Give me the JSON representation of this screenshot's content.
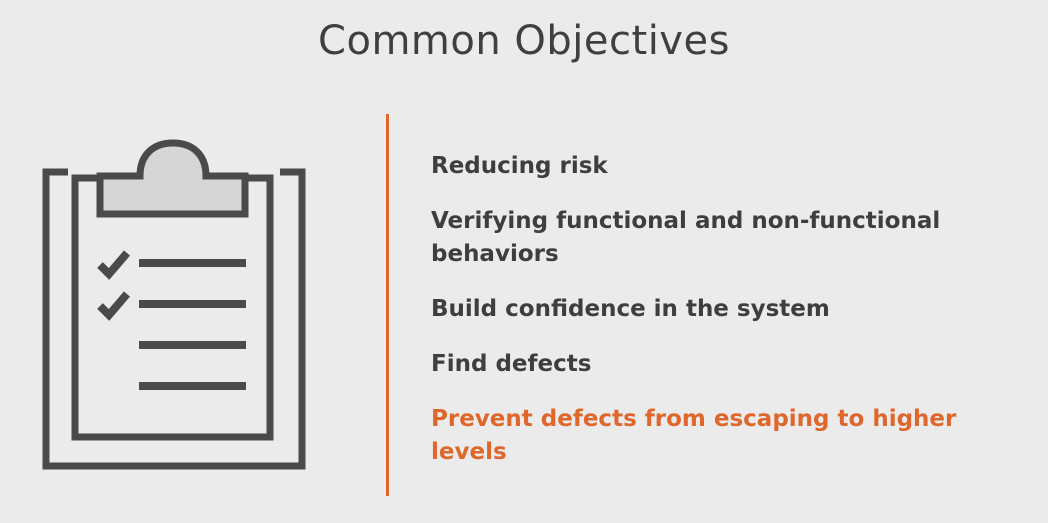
{
  "slide": {
    "title": "Common Objectives"
  },
  "icon": {
    "name": "clipboard-checklist-icon",
    "stroke_color": "#4a4a4a",
    "clip_fill_color": "#d6d6d6"
  },
  "accent_color": "#e0672c",
  "objectives": [
    {
      "label": "Reducing risk",
      "highlighted": false
    },
    {
      "label": "Verifying functional and non-functional behaviors",
      "highlighted": false
    },
    {
      "label": "Build confidence in the system",
      "highlighted": false
    },
    {
      "label": "Find defects",
      "highlighted": false
    },
    {
      "label": "Prevent defects from escaping to higher levels",
      "highlighted": true
    }
  ]
}
